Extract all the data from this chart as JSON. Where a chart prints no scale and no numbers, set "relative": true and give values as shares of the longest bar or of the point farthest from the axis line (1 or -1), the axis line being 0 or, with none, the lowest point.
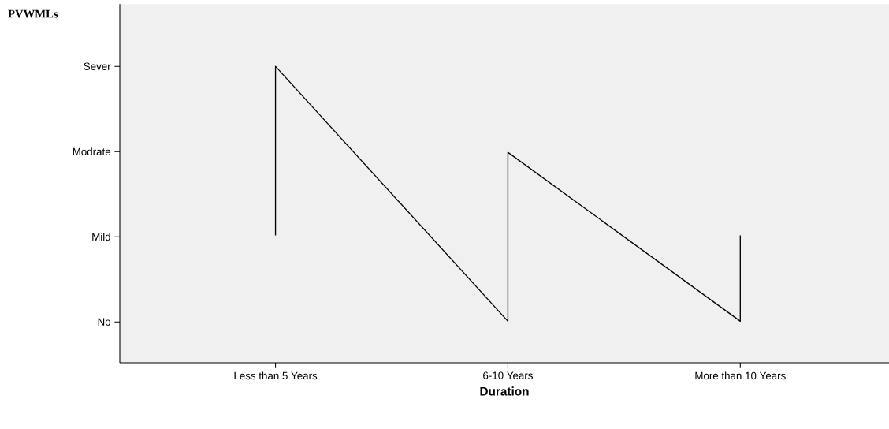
{
  "chart_data": {
    "type": "line",
    "annotations": [
      "PVWMLs"
    ],
    "xlabel": "Duration",
    "categories": [
      "Less than 5 Years",
      "6-10 Years",
      "More than 10 Years"
    ],
    "y_categories": [
      "Sever",
      "Modrate",
      "Mild",
      "No"
    ],
    "series": [
      {
        "color": "#000000",
        "x": [
          "Less than 5 Years",
          "Less than 5 Years",
          "6-10 Years",
          "6-10 Years",
          "More than 10 Years",
          "More than 10 Years"
        ],
        "values": [
          0.43,
          1,
          0.14,
          0.71,
          0.14,
          0.43
        ]
      }
    ],
    "relative": true,
    "grid": false,
    "marker": "none",
    "line_style": "solid"
  }
}
